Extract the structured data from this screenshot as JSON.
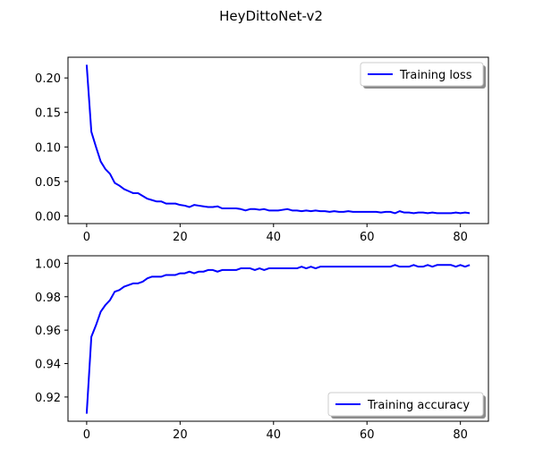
{
  "figure": {
    "suptitle": "HeyDittoNet-v2",
    "line_color": "#0000ff"
  },
  "chart_data": [
    {
      "type": "line",
      "title": "",
      "xlabel": "",
      "ylabel": "",
      "xlim": [
        -4,
        86
      ],
      "ylim": [
        -0.011,
        0.23
      ],
      "xticks": [
        0,
        20,
        40,
        60,
        80
      ],
      "yticks": [
        0.0,
        0.05,
        0.1,
        0.15,
        0.2
      ],
      "ytick_labels": [
        "0.00",
        "0.05",
        "0.10",
        "0.15",
        "0.20"
      ],
      "legend_position": "upper right",
      "grid": false,
      "series": [
        {
          "name": "Training loss",
          "x": [
            0,
            1,
            2,
            3,
            4,
            5,
            6,
            7,
            8,
            9,
            10,
            11,
            12,
            13,
            14,
            15,
            16,
            17,
            18,
            19,
            20,
            21,
            22,
            23,
            24,
            25,
            26,
            27,
            28,
            29,
            30,
            31,
            32,
            33,
            34,
            35,
            36,
            37,
            38,
            39,
            40,
            41,
            42,
            43,
            44,
            45,
            46,
            47,
            48,
            49,
            50,
            51,
            52,
            53,
            54,
            55,
            56,
            57,
            58,
            59,
            60,
            61,
            62,
            63,
            64,
            65,
            66,
            67,
            68,
            69,
            70,
            71,
            72,
            73,
            74,
            75,
            76,
            77,
            78,
            79,
            80,
            81,
            82
          ],
          "values": [
            0.219,
            0.122,
            0.1,
            0.079,
            0.068,
            0.061,
            0.048,
            0.044,
            0.039,
            0.036,
            0.033,
            0.033,
            0.029,
            0.025,
            0.023,
            0.021,
            0.021,
            0.018,
            0.018,
            0.018,
            0.016,
            0.015,
            0.013,
            0.016,
            0.015,
            0.014,
            0.013,
            0.013,
            0.014,
            0.011,
            0.011,
            0.011,
            0.011,
            0.01,
            0.008,
            0.01,
            0.01,
            0.009,
            0.01,
            0.008,
            0.008,
            0.008,
            0.009,
            0.01,
            0.008,
            0.008,
            0.007,
            0.008,
            0.007,
            0.008,
            0.007,
            0.007,
            0.006,
            0.007,
            0.006,
            0.006,
            0.007,
            0.006,
            0.006,
            0.006,
            0.006,
            0.006,
            0.006,
            0.005,
            0.006,
            0.006,
            0.004,
            0.007,
            0.005,
            0.005,
            0.004,
            0.005,
            0.005,
            0.004,
            0.005,
            0.004,
            0.004,
            0.004,
            0.004,
            0.005,
            0.004,
            0.005,
            0.004
          ]
        }
      ]
    },
    {
      "type": "line",
      "title": "",
      "xlabel": "",
      "ylabel": "",
      "xlim": [
        -4,
        86
      ],
      "ylim": [
        0.9055,
        1.0045
      ],
      "xticks": [
        0,
        20,
        40,
        60,
        80
      ],
      "yticks": [
        0.92,
        0.94,
        0.96,
        0.98,
        1.0
      ],
      "ytick_labels": [
        "0.92",
        "0.94",
        "0.96",
        "0.98",
        "1.00"
      ],
      "legend_position": "lower right",
      "grid": false,
      "series": [
        {
          "name": "Training accuracy",
          "x": [
            0,
            1,
            2,
            3,
            4,
            5,
            6,
            7,
            8,
            9,
            10,
            11,
            12,
            13,
            14,
            15,
            16,
            17,
            18,
            19,
            20,
            21,
            22,
            23,
            24,
            25,
            26,
            27,
            28,
            29,
            30,
            31,
            32,
            33,
            34,
            35,
            36,
            37,
            38,
            39,
            40,
            41,
            42,
            43,
            44,
            45,
            46,
            47,
            48,
            49,
            50,
            51,
            52,
            53,
            54,
            55,
            56,
            57,
            58,
            59,
            60,
            61,
            62,
            63,
            64,
            65,
            66,
            67,
            68,
            69,
            70,
            71,
            72,
            73,
            74,
            75,
            76,
            77,
            78,
            79,
            80,
            81,
            82
          ],
          "values": [
            0.91,
            0.956,
            0.963,
            0.971,
            0.975,
            0.978,
            0.983,
            0.984,
            0.986,
            0.987,
            0.988,
            0.988,
            0.989,
            0.991,
            0.992,
            0.992,
            0.992,
            0.993,
            0.993,
            0.993,
            0.994,
            0.994,
            0.995,
            0.994,
            0.995,
            0.995,
            0.996,
            0.996,
            0.995,
            0.996,
            0.996,
            0.996,
            0.996,
            0.997,
            0.997,
            0.997,
            0.996,
            0.997,
            0.996,
            0.997,
            0.997,
            0.997,
            0.997,
            0.997,
            0.997,
            0.997,
            0.998,
            0.997,
            0.998,
            0.997,
            0.998,
            0.998,
            0.998,
            0.998,
            0.998,
            0.998,
            0.998,
            0.998,
            0.998,
            0.998,
            0.998,
            0.998,
            0.998,
            0.998,
            0.998,
            0.998,
            0.999,
            0.998,
            0.998,
            0.998,
            0.999,
            0.998,
            0.998,
            0.999,
            0.998,
            0.999,
            0.999,
            0.999,
            0.999,
            0.998,
            0.999,
            0.998,
            0.999
          ]
        }
      ]
    }
  ]
}
